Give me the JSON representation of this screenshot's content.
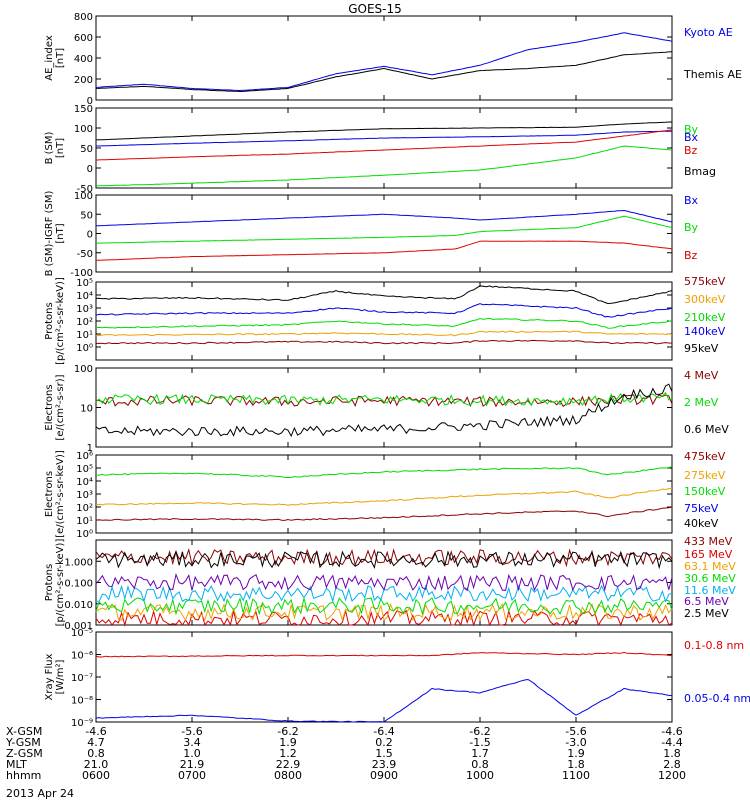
{
  "title": "GOES-15",
  "date_label": "2013 Apr 24",
  "colors": {
    "black": "#000000",
    "blue": "#0000e6",
    "green": "#00dd00",
    "red": "#dd0000",
    "orange": "#f0a000",
    "darkred": "#8b0000",
    "cyan": "#00b0f0",
    "purple": "#6a00b0"
  },
  "time_axis": {
    "start": "06:00",
    "end": "12:00",
    "tick_labels": [
      "0600",
      "0700",
      "0800",
      "0900",
      "1000",
      "1100",
      "1200"
    ]
  },
  "ephemeris": {
    "row_labels": [
      "X-GSM",
      "Y-GSM",
      "Z-GSM",
      "MLT",
      "hhmm"
    ],
    "columns": [
      [
        "-4.6",
        "4.7",
        "0.8",
        "21.0",
        "0600"
      ],
      [
        "-5.6",
        "3.4",
        "1.0",
        "21.9",
        "0700"
      ],
      [
        "-6.2",
        "1.9",
        "1.2",
        "22.9",
        "0800"
      ],
      [
        "-6.4",
        "0.2",
        "1.5",
        "23.9",
        "0900"
      ],
      [
        "-6.2",
        "-1.5",
        "1.7",
        "0.8",
        "1000"
      ],
      [
        "-5.6",
        "-3.0",
        "1.9",
        "1.8",
        "1100"
      ],
      [
        "-4.6",
        "-4.4",
        "1.8",
        "2.8",
        "1200"
      ]
    ]
  },
  "chart_data": [
    {
      "type": "line",
      "ylabel": "AE_index\n[nT]",
      "ylim": [
        0,
        800
      ],
      "yticks": [
        0,
        200,
        400,
        600,
        800
      ],
      "ytick_labels": [
        "0",
        "200",
        "400",
        "600",
        "800"
      ],
      "log": false,
      "times": [
        "06:00",
        "06:30",
        "07:00",
        "07:30",
        "08:00",
        "08:30",
        "09:00",
        "09:30",
        "10:00",
        "10:30",
        "11:00",
        "11:30",
        "12:00"
      ],
      "series": [
        {
          "name": "Kyoto AE",
          "color": "blue",
          "values": [
            120,
            150,
            110,
            90,
            120,
            250,
            320,
            240,
            330,
            480,
            550,
            640,
            560
          ]
        },
        {
          "name": "Themis AE",
          "color": "black",
          "values": [
            110,
            130,
            100,
            80,
            110,
            220,
            300,
            200,
            280,
            300,
            330,
            430,
            460
          ]
        }
      ]
    },
    {
      "type": "line",
      "ylabel": "B (SM)\n[nT]",
      "ylim": [
        -50,
        150
      ],
      "yticks": [
        -50,
        0,
        50,
        100,
        150
      ],
      "ytick_labels": [
        "-50",
        "0",
        "50",
        "100",
        "150"
      ],
      "log": false,
      "times": [
        "06:00",
        "07:00",
        "08:00",
        "09:00",
        "10:00",
        "11:00",
        "11:30",
        "12:00"
      ],
      "series": [
        {
          "name": "Bx",
          "color": "blue",
          "values": [
            55,
            62,
            68,
            75,
            78,
            82,
            90,
            92
          ]
        },
        {
          "name": "By",
          "color": "green",
          "values": [
            -45,
            -38,
            -30,
            -18,
            -5,
            25,
            55,
            45
          ]
        },
        {
          "name": "Bz",
          "color": "red",
          "values": [
            20,
            28,
            35,
            45,
            55,
            65,
            80,
            95
          ]
        },
        {
          "name": "Bmag",
          "color": "black",
          "values": [
            70,
            80,
            90,
            98,
            100,
            102,
            110,
            115
          ]
        }
      ]
    },
    {
      "type": "line",
      "ylabel": "B (SM)-IGRF (SM)\n[nT]",
      "ylim": [
        -100,
        100
      ],
      "yticks": [
        -100,
        -50,
        0,
        50,
        100
      ],
      "ytick_labels": [
        "-100",
        "-50",
        "0",
        "50",
        "100"
      ],
      "log": false,
      "times": [
        "06:00",
        "07:00",
        "08:00",
        "09:00",
        "09:45",
        "10:00",
        "11:00",
        "11:30",
        "12:00"
      ],
      "series": [
        {
          "name": "Bx",
          "color": "blue",
          "values": [
            20,
            30,
            40,
            50,
            40,
            35,
            50,
            60,
            30
          ]
        },
        {
          "name": "By",
          "color": "green",
          "values": [
            -25,
            -20,
            -15,
            -10,
            -5,
            5,
            15,
            45,
            15
          ]
        },
        {
          "name": "Bz",
          "color": "red",
          "values": [
            -70,
            -60,
            -55,
            -50,
            -40,
            -20,
            -20,
            -25,
            -40
          ]
        }
      ]
    },
    {
      "type": "line",
      "ylabel": "Protons\n[p/(cm²-s-sr-keV)]",
      "ylim": [
        0.1,
        100000
      ],
      "log": true,
      "yticks": [
        1,
        10,
        100,
        1000,
        10000,
        100000
      ],
      "ytick_labels": [
        "10⁰",
        "10¹",
        "10²",
        "10³",
        "10⁴",
        "10⁵"
      ],
      "times": [
        "06:00",
        "07:00",
        "08:00",
        "08:30",
        "09:00",
        "09:45",
        "10:00",
        "11:00",
        "11:20",
        "12:00"
      ],
      "series": [
        {
          "name": "575keV",
          "color": "darkred",
          "values": [
            2,
            2,
            2.5,
            2.5,
            2,
            2,
            3,
            3,
            2,
            2
          ]
        },
        {
          "name": "300keV",
          "color": "orange",
          "values": [
            8,
            9,
            10,
            12,
            10,
            8,
            15,
            15,
            10,
            10
          ]
        },
        {
          "name": "210keV",
          "color": "green",
          "values": [
            30,
            40,
            50,
            100,
            60,
            40,
            150,
            100,
            30,
            100
          ]
        },
        {
          "name": "140keV",
          "color": "blue",
          "values": [
            300,
            400,
            400,
            1000,
            500,
            400,
            2000,
            1000,
            200,
            1000
          ]
        },
        {
          "name": "95keV",
          "color": "black",
          "values": [
            5000,
            6000,
            4000,
            20000,
            8000,
            5000,
            50000,
            20000,
            2000,
            20000
          ]
        }
      ]
    },
    {
      "type": "line",
      "ylabel": "Electrons\n[e/(cm²-s-sr)]",
      "ylim": [
        1,
        100
      ],
      "log": true,
      "yticks": [
        1,
        10,
        100
      ],
      "ytick_labels": [
        "1",
        "10",
        "100"
      ],
      "times": [
        "06:00",
        "07:00",
        "08:00",
        "09:00",
        "10:00",
        "11:00",
        "11:30",
        "12:00"
      ],
      "series": [
        {
          "name": "4 MeV",
          "color": "darkred",
          "values": [
            14,
            15,
            14,
            15,
            14,
            14,
            16,
            16
          ]
        },
        {
          "name": "2 MeV",
          "color": "green",
          "values": [
            16,
            16,
            15,
            16,
            15,
            15,
            17,
            18
          ]
        },
        {
          "name": "0.6 MeV",
          "color": "black",
          "values": [
            2.5,
            2.5,
            2.5,
            2.8,
            3.5,
            5,
            20,
            30
          ]
        }
      ]
    },
    {
      "type": "line",
      "ylabel": "Electrons\n[e/(cm²-s-sr-keV)]",
      "ylim": [
        1,
        1000000
      ],
      "log": true,
      "yticks": [
        1,
        10,
        100,
        1000,
        10000,
        100000,
        1000000
      ],
      "ytick_labels": [
        "10⁰",
        "10¹",
        "10²",
        "10³",
        "10⁴",
        "10⁵",
        "10⁶"
      ],
      "times": [
        "06:00",
        "07:00",
        "08:00",
        "09:00",
        "10:00",
        "11:00",
        "11:20",
        "12:00"
      ],
      "series": [
        {
          "name": "475keV",
          "color": "darkred",
          "values": [
            10,
            12,
            10,
            15,
            30,
            50,
            20,
            100
          ]
        },
        {
          "name": "275keV",
          "color": "orange",
          "values": [
            150,
            200,
            150,
            300,
            800,
            1500,
            500,
            3000
          ]
        },
        {
          "name": "150keV",
          "color": "green",
          "values": [
            30000,
            40000,
            20000,
            50000,
            80000,
            100000,
            30000,
            120000
          ]
        },
        {
          "name": "75keV",
          "color": "blue",
          "values": [
            0,
            0,
            0,
            0,
            0,
            0,
            0,
            0
          ]
        },
        {
          "name": "40keV",
          "color": "black",
          "values": [
            0,
            0,
            0,
            0,
            0,
            0,
            0,
            0
          ]
        }
      ]
    },
    {
      "type": "line",
      "ylabel": "Protons\n[p/(cm²-s-sr-keV)]",
      "ylim": [
        0.001,
        10
      ],
      "log": true,
      "yticks": [
        0.001,
        0.01,
        0.1,
        1
      ],
      "ytick_labels": [
        "0.001",
        "0.010",
        "0.100",
        "1.000"
      ],
      "times": [
        "06:00",
        "12:00"
      ],
      "series": [
        {
          "name": "433 MeV",
          "color": "darkred",
          "values": [
            1.5,
            1.5
          ]
        },
        {
          "name": "165 MeV",
          "color": "red",
          "values": [
            0.002,
            0.002
          ]
        },
        {
          "name": "63.1 MeV",
          "color": "orange",
          "values": [
            0.004,
            0.004
          ]
        },
        {
          "name": "30.6 MeV",
          "color": "green",
          "values": [
            0.008,
            0.008
          ]
        },
        {
          "name": "11.6 MeV",
          "color": "cyan",
          "values": [
            0.03,
            0.03
          ]
        },
        {
          "name": "6.5 MeV",
          "color": "purple",
          "values": [
            0.1,
            0.1
          ]
        },
        {
          "name": "2.5 MeV",
          "color": "black",
          "values": [
            1.2,
            1.2
          ]
        }
      ]
    },
    {
      "type": "line",
      "ylabel": "Xray Flux\n[W/m²]",
      "ylim": [
        1e-09,
        1e-05
      ],
      "log": true,
      "yticks": [
        1e-09,
        1e-08,
        1e-07,
        1e-06,
        1e-05
      ],
      "ytick_labels": [
        "10⁻⁹",
        "10⁻⁸",
        "10⁻⁷",
        "10⁻⁶",
        "10⁻⁵"
      ],
      "times": [
        "06:00",
        "07:00",
        "08:00",
        "09:00",
        "09:30",
        "10:00",
        "10:30",
        "11:00",
        "11:30",
        "12:00"
      ],
      "series": [
        {
          "name": "0.1-0.8 nm",
          "color": "red",
          "values": [
            8e-07,
            8.5e-07,
            9e-07,
            9e-07,
            9e-07,
            1.2e-06,
            1.1e-06,
            1e-06,
            1.2e-06,
            9e-07
          ]
        },
        {
          "name": "0.05-0.4 nm",
          "color": "blue",
          "values": [
            1.5e-09,
            2e-09,
            1.1e-09,
            1e-09,
            3e-08,
            2e-08,
            8e-08,
            2e-09,
            3e-08,
            1.5e-08
          ]
        }
      ]
    }
  ]
}
